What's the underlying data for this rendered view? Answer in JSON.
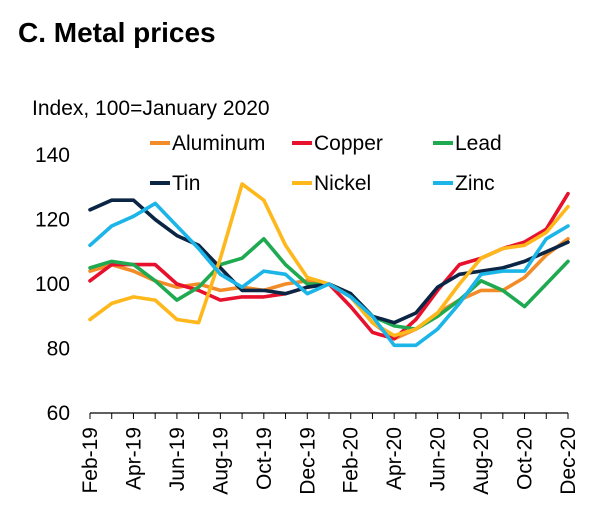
{
  "chart_data": {
    "type": "line",
    "title": "C. Metal prices",
    "ylabel": "Index, 100=January 2020",
    "xlabel": "",
    "ylim": [
      60,
      140
    ],
    "yticks": [
      60,
      80,
      100,
      120,
      140
    ],
    "x": [
      "Feb-19",
      "Mar-19",
      "Apr-19",
      "May-19",
      "Jun-19",
      "Jul-19",
      "Aug-19",
      "Sep-19",
      "Oct-19",
      "Nov-19",
      "Dec-19",
      "Jan-20",
      "Feb-20",
      "Mar-20",
      "Apr-20",
      "May-20",
      "Jun-20",
      "Jul-20",
      "Aug-20",
      "Sep-20",
      "Oct-20",
      "Nov-20",
      "Dec-20"
    ],
    "xtick_labels": [
      "Feb-19",
      "Apr-19",
      "Jun-19",
      "Aug-19",
      "Oct-19",
      "Dec-19",
      "Feb-20",
      "Apr-20",
      "Jun-20",
      "Aug-20",
      "Oct-20",
      "Dec-20"
    ],
    "grid": false,
    "legend_position": "top",
    "series": [
      {
        "name": "Aluminum",
        "color": "#F28C28",
        "values": [
          104,
          106,
          104,
          101,
          99,
          100,
          98,
          99,
          98,
          100,
          101,
          100,
          96,
          88,
          83,
          86,
          91,
          95,
          98,
          98,
          102,
          109,
          114
        ]
      },
      {
        "name": "Copper",
        "color": "#E8112D",
        "values": [
          101,
          106,
          106,
          106,
          100,
          98,
          95,
          96,
          96,
          97,
          99,
          100,
          93,
          85,
          83,
          89,
          98,
          106,
          108,
          111,
          113,
          117,
          128
        ]
      },
      {
        "name": "Lead",
        "color": "#1FAA52",
        "values": [
          105,
          107,
          106,
          101,
          95,
          99,
          106,
          108,
          114,
          106,
          100,
          100,
          97,
          90,
          87,
          86,
          90,
          95,
          101,
          98,
          93,
          100,
          107
        ]
      },
      {
        "name": "Tin",
        "color": "#0B2545",
        "values": [
          123,
          126,
          126,
          120,
          115,
          112,
          105,
          98,
          98,
          97,
          99,
          100,
          97,
          90,
          88,
          91,
          99,
          103,
          104,
          105,
          107,
          110,
          113
        ]
      },
      {
        "name": "Nickel",
        "color": "#FFB81C",
        "values": [
          89,
          94,
          96,
          95,
          89,
          88,
          108,
          131,
          126,
          112,
          102,
          100,
          96,
          88,
          84,
          86,
          91,
          100,
          108,
          111,
          112,
          116,
          124
        ]
      },
      {
        "name": "Zinc",
        "color": "#1CB5E8",
        "values": [
          112,
          118,
          121,
          125,
          118,
          111,
          103,
          99,
          104,
          103,
          97,
          100,
          96,
          90,
          81,
          81,
          86,
          94,
          103,
          104,
          104,
          114,
          118
        ]
      }
    ]
  }
}
